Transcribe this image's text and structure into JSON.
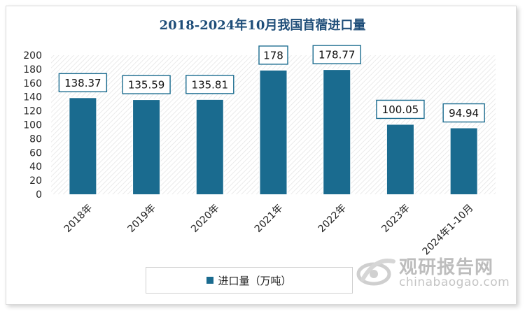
{
  "chart_data": {
    "type": "bar",
    "title": "2018-2024年10月我国苜蓿进口量",
    "categories": [
      "2018年",
      "2019年",
      "2020年",
      "2021年",
      "2022年",
      "2023年",
      "2024年1-10月"
    ],
    "series": [
      {
        "name": "进口量（万吨）",
        "values": [
          138.37,
          135.59,
          135.81,
          178,
          178.77,
          100.05,
          94.94
        ]
      }
    ],
    "data_labels": [
      "138.37",
      "135.59",
      "135.81",
      "178",
      "178.77",
      "100.05",
      "94.94"
    ],
    "ylim": [
      0,
      200
    ],
    "yticks": [
      0,
      20,
      40,
      60,
      80,
      100,
      120,
      140,
      160,
      180,
      200
    ],
    "grid": false,
    "legend_position": "bottom",
    "bar_color": "#1a6b8f",
    "xlabel": "",
    "ylabel": ""
  },
  "watermark": {
    "brand": "观研报告网",
    "url": "chinabaogao.com"
  }
}
